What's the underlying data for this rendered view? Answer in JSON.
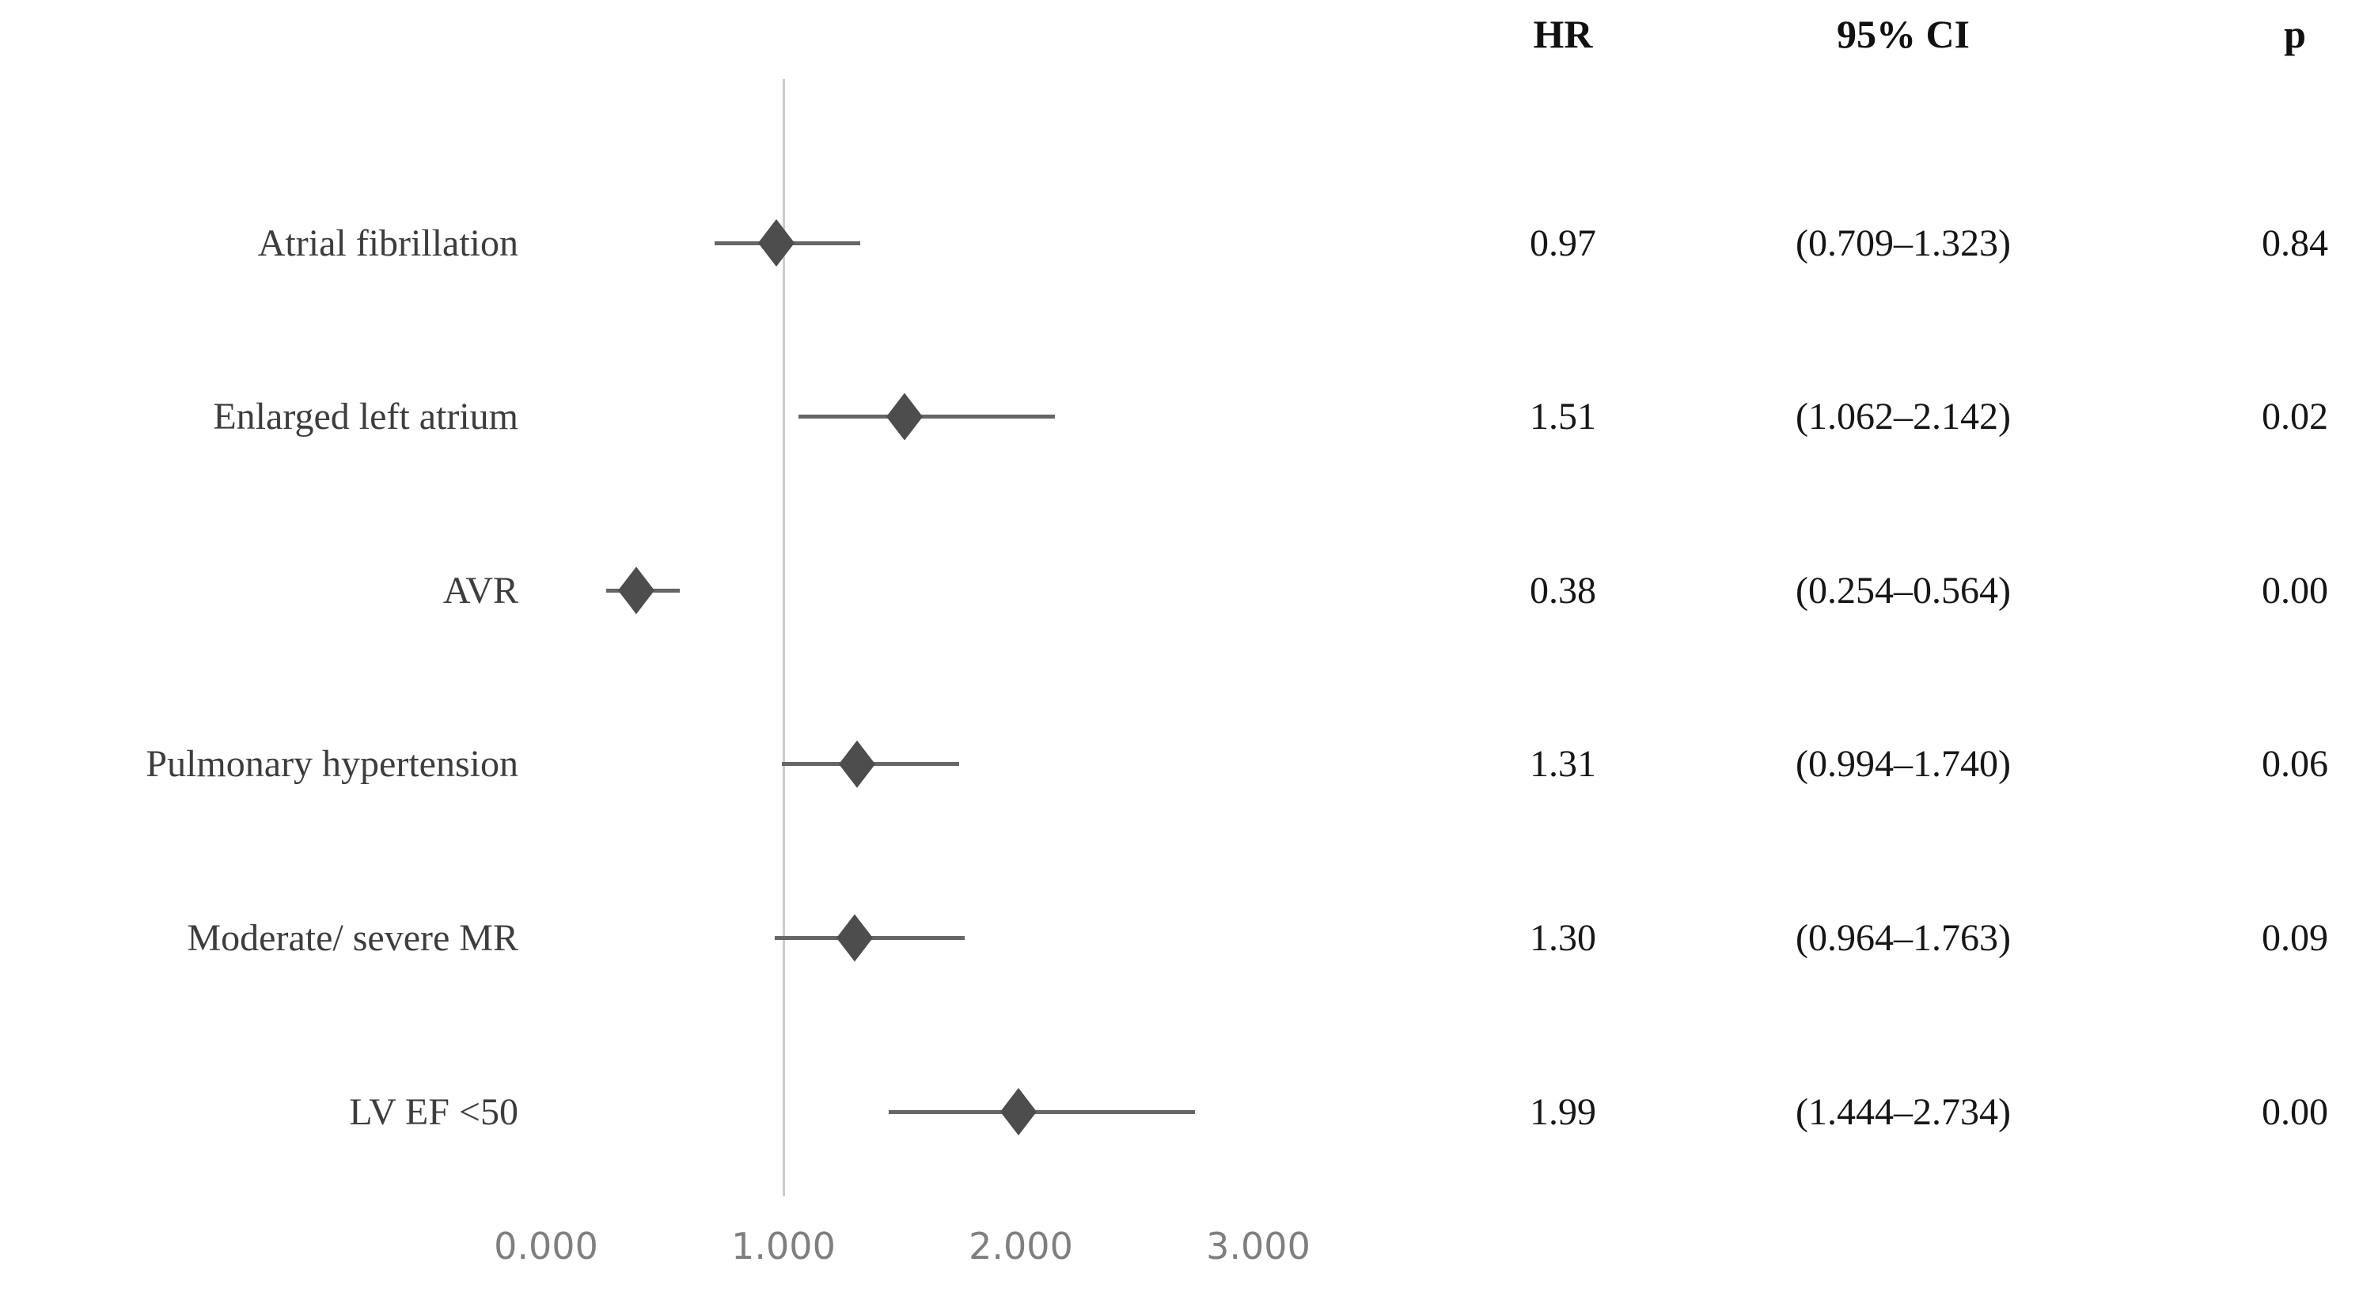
{
  "table": {
    "headers": {
      "hr": "HR",
      "ci": "95% CI",
      "p": "p"
    }
  },
  "chart_data": {
    "type": "scatter",
    "subtype": "forest-plot",
    "title": "",
    "xlabel": "",
    "ylabel": "",
    "xlim": [
      0,
      3.6
    ],
    "grid": false,
    "legend": "none",
    "reference_line_x": 1.0,
    "x_ticks": [
      {
        "value": 0,
        "label": "0.000"
      },
      {
        "value": 1,
        "label": "1.000"
      },
      {
        "value": 2,
        "label": "2.000"
      },
      {
        "value": 3,
        "label": "3.000"
      }
    ],
    "rows": [
      {
        "label": "Atrial fibrillation",
        "hr": 0.97,
        "ci_low": 0.709,
        "ci_high": 1.323,
        "p": 0.84,
        "hr_text": "0.97",
        "ci_text": "(0.709–1.323)",
        "p_text": "0.84"
      },
      {
        "label": "Enlarged left atrium",
        "hr": 1.51,
        "ci_low": 1.062,
        "ci_high": 2.142,
        "p": 0.02,
        "hr_text": "1.51",
        "ci_text": "(1.062–2.142)",
        "p_text": "0.02"
      },
      {
        "label": "AVR",
        "hr": 0.38,
        "ci_low": 0.254,
        "ci_high": 0.564,
        "p": 0.0,
        "hr_text": "0.38",
        "ci_text": "(0.254–0.564)",
        "p_text": "0.00"
      },
      {
        "label": "Pulmonary hypertension",
        "hr": 1.31,
        "ci_low": 0.994,
        "ci_high": 1.74,
        "p": 0.06,
        "hr_text": "1.31",
        "ci_text": "(0.994–1.740)",
        "p_text": "0.06"
      },
      {
        "label": "Moderate/ severe MR",
        "hr": 1.3,
        "ci_low": 0.964,
        "ci_high": 1.763,
        "p": 0.09,
        "hr_text": "1.30",
        "ci_text": "(0.964–1.763)",
        "p_text": "0.09"
      },
      {
        "label": "LV EF <50",
        "hr": 1.99,
        "ci_low": 1.444,
        "ci_high": 2.734,
        "p": 0.0,
        "hr_text": "1.99",
        "ci_text": "(1.444–2.734)",
        "p_text": "0.00"
      }
    ],
    "colors": {
      "marker": "#4d4d4d",
      "ci_line": "#666666",
      "reference_line": "#cccccc",
      "label_text": "#3d3d3d",
      "value_text": "#161616",
      "header_text": "#111111",
      "tick_text": "#7f7f7f",
      "background": "#ffffff"
    }
  }
}
